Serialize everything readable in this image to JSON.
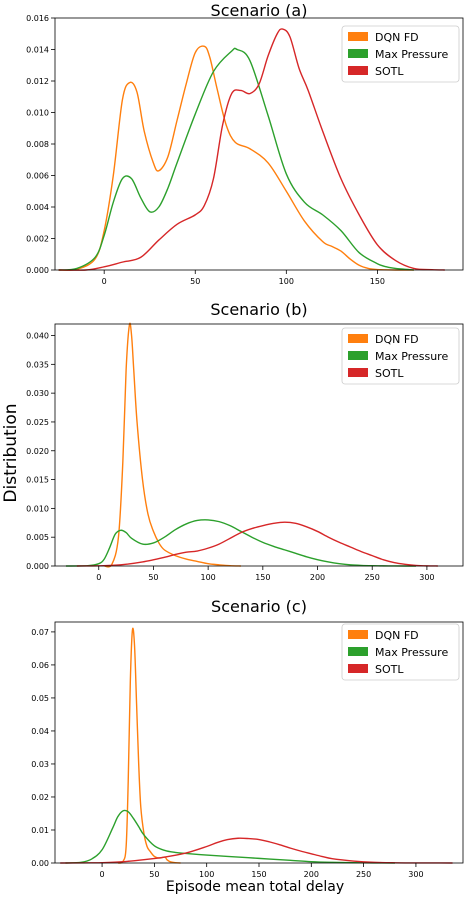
{
  "figure": {
    "shared_ylabel": "Distribution",
    "shared_xlabel": "Episode mean total delay"
  },
  "colors": {
    "DQN FD": "#ff7f0e",
    "Max Pressure": "#2ca02c",
    "SOTL": "#d62728"
  },
  "chart_data": [
    {
      "type": "area",
      "title": "Scenario (a)",
      "xlim": [
        -27,
        197
      ],
      "ylim": [
        0,
        0.016
      ],
      "xticks": [
        0,
        50,
        100,
        150
      ],
      "yticks": [
        0.0,
        0.002,
        0.004,
        0.006,
        0.008,
        0.01,
        0.012,
        0.014,
        0.016
      ],
      "ytick_decimals": 3,
      "legend": {
        "placement": "top-right",
        "entries": [
          "DQN FD",
          "Max Pressure",
          "SOTL"
        ]
      },
      "series": [
        {
          "name": "DQN FD",
          "x": [
            -25,
            -15,
            -5,
            0,
            5,
            10,
            14,
            18,
            22,
            27,
            30,
            35,
            40,
            45,
            50,
            55,
            58,
            62,
            67,
            72,
            80,
            90,
            100,
            110,
            120,
            125,
            130,
            135,
            140,
            145,
            150,
            160,
            170
          ],
          "y": [
            0,
            5e-05,
            0.0007,
            0.0025,
            0.006,
            0.0108,
            0.0119,
            0.0113,
            0.0088,
            0.0068,
            0.0063,
            0.0072,
            0.0095,
            0.0118,
            0.0138,
            0.0142,
            0.0135,
            0.0115,
            0.0092,
            0.0081,
            0.0077,
            0.0068,
            0.005,
            0.0031,
            0.0018,
            0.0015,
            0.0012,
            0.0007,
            0.0003,
            0.0001,
            3e-05,
            0,
            0
          ]
        },
        {
          "name": "Max Pressure",
          "x": [
            -25,
            -15,
            -5,
            0,
            5,
            10,
            15,
            20,
            25,
            30,
            35,
            40,
            50,
            60,
            70,
            73,
            80,
            90,
            100,
            110,
            120,
            130,
            140,
            150,
            155,
            160,
            170
          ],
          "y": [
            0,
            0.0001,
            0.0008,
            0.0022,
            0.0043,
            0.0058,
            0.0058,
            0.0046,
            0.0037,
            0.004,
            0.0052,
            0.0068,
            0.0099,
            0.0126,
            0.0139,
            0.014,
            0.0133,
            0.0098,
            0.0061,
            0.0043,
            0.0035,
            0.0025,
            0.0011,
            0.0004,
            0.0002,
            0.0001,
            0
          ]
        },
        {
          "name": "SOTL",
          "x": [
            -25,
            -10,
            0,
            10,
            20,
            30,
            40,
            50,
            55,
            60,
            65,
            70,
            75,
            80,
            85,
            90,
            95,
            98,
            102,
            107,
            112,
            120,
            130,
            140,
            150,
            160,
            170,
            180,
            187
          ],
          "y": [
            0,
            0,
            0.0002,
            0.0005,
            0.0008,
            0.0019,
            0.0029,
            0.0035,
            0.0041,
            0.0058,
            0.0092,
            0.0112,
            0.0114,
            0.0112,
            0.0118,
            0.0136,
            0.015,
            0.0153,
            0.0148,
            0.0128,
            0.0114,
            0.0088,
            0.0058,
            0.0035,
            0.0016,
            0.0006,
            0.0001,
            2e-05,
            0
          ]
        }
      ]
    },
    {
      "type": "area",
      "title": "Scenario (b)",
      "xlim": [
        -40,
        333
      ],
      "ylim": [
        0,
        0.042
      ],
      "xticks": [
        0,
        50,
        100,
        150,
        200,
        250,
        300
      ],
      "yticks": [
        0.0,
        0.005,
        0.01,
        0.015,
        0.02,
        0.025,
        0.03,
        0.035,
        0.04
      ],
      "ytick_decimals": 3,
      "legend": {
        "placement": "top-right",
        "entries": [
          "DQN FD",
          "Max Pressure",
          "SOTL"
        ]
      },
      "series": [
        {
          "name": "DQN FD",
          "x": [
            5,
            12,
            18,
            22,
            25,
            28,
            30,
            32,
            35,
            40,
            45,
            50,
            55,
            60,
            70,
            80,
            90,
            100,
            110,
            120,
            130
          ],
          "y": [
            0,
            0.0003,
            0.005,
            0.018,
            0.034,
            0.0418,
            0.04,
            0.034,
            0.025,
            0.015,
            0.009,
            0.006,
            0.004,
            0.0028,
            0.0018,
            0.0012,
            0.0008,
            0.0004,
            0.0002,
            5e-05,
            0
          ]
        },
        {
          "name": "Max Pressure",
          "x": [
            -30,
            -10,
            0,
            5,
            10,
            15,
            20,
            25,
            30,
            40,
            50,
            60,
            70,
            80,
            90,
            100,
            110,
            120,
            130,
            140,
            150,
            160,
            170,
            180,
            190,
            200,
            210,
            220,
            230,
            240,
            250,
            260,
            270,
            280,
            290
          ],
          "y": [
            0,
            5e-05,
            0.0004,
            0.0012,
            0.0032,
            0.0055,
            0.0062,
            0.0058,
            0.0048,
            0.0038,
            0.004,
            0.005,
            0.0063,
            0.0073,
            0.0079,
            0.008,
            0.0077,
            0.007,
            0.006,
            0.005,
            0.0041,
            0.0034,
            0.0028,
            0.0022,
            0.0016,
            0.0011,
            0.0007,
            0.0004,
            0.0002,
            0.0001,
            5e-05,
            2e-05,
            1e-05,
            0,
            0
          ]
        },
        {
          "name": "SOTL",
          "x": [
            -20,
            0,
            20,
            40,
            60,
            70,
            80,
            90,
            100,
            110,
            120,
            130,
            140,
            150,
            160,
            170,
            180,
            190,
            200,
            210,
            220,
            230,
            240,
            250,
            260,
            270,
            280,
            290,
            300,
            310
          ],
          "y": [
            0,
            3e-05,
            0.0002,
            0.0007,
            0.0015,
            0.002,
            0.0024,
            0.0026,
            0.0031,
            0.0038,
            0.0048,
            0.0058,
            0.0065,
            0.007,
            0.0074,
            0.0076,
            0.0074,
            0.0068,
            0.006,
            0.005,
            0.0041,
            0.0033,
            0.0025,
            0.0018,
            0.0011,
            0.0006,
            0.0003,
            0.0001,
            2e-05,
            0
          ]
        }
      ]
    },
    {
      "type": "area",
      "title": "Scenario (c)",
      "xlim": [
        -45,
        345
      ],
      "ylim": [
        0,
        0.073
      ],
      "xticks": [
        0,
        50,
        100,
        150,
        200,
        250,
        300
      ],
      "yticks": [
        0.0,
        0.01,
        0.02,
        0.03,
        0.04,
        0.05,
        0.06,
        0.07
      ],
      "ytick_decimals": 2,
      "legend": {
        "placement": "top-right",
        "entries": [
          "DQN FD",
          "Max Pressure",
          "SOTL"
        ]
      },
      "series": [
        {
          "name": "DQN FD",
          "x": [
            15,
            20,
            23,
            25,
            27,
            29,
            31,
            33,
            35,
            37,
            40,
            43,
            46,
            50,
            55,
            60,
            62,
            65,
            70,
            75
          ],
          "y": [
            0,
            0.0005,
            0.005,
            0.025,
            0.055,
            0.0705,
            0.066,
            0.048,
            0.03,
            0.017,
            0.009,
            0.005,
            0.0035,
            0.002,
            0.0015,
            0.0018,
            0.001,
            0.0004,
            0.0001,
            0
          ]
        },
        {
          "name": "Max Pressure",
          "x": [
            -35,
            -20,
            -10,
            0,
            10,
            15,
            20,
            25,
            30,
            35,
            40,
            50,
            60,
            70,
            80,
            100,
            120,
            140,
            160,
            180,
            200,
            220,
            240,
            260,
            280
          ],
          "y": [
            0,
            0.0002,
            0.0012,
            0.004,
            0.0105,
            0.014,
            0.0158,
            0.0155,
            0.0135,
            0.011,
            0.0085,
            0.0052,
            0.0038,
            0.0032,
            0.0029,
            0.0024,
            0.002,
            0.0016,
            0.0012,
            0.0008,
            0.0004,
            0.0002,
            0.0001,
            3e-05,
            0
          ]
        },
        {
          "name": "SOTL",
          "x": [
            -40,
            -10,
            0,
            20,
            40,
            60,
            80,
            100,
            110,
            120,
            130,
            140,
            150,
            160,
            170,
            180,
            190,
            200,
            210,
            220,
            240,
            260,
            280,
            300,
            320,
            335
          ],
          "y": [
            0,
            5e-05,
            0.0001,
            0.0004,
            0.001,
            0.0018,
            0.003,
            0.005,
            0.0062,
            0.0071,
            0.0075,
            0.0074,
            0.0071,
            0.0064,
            0.0055,
            0.0045,
            0.0036,
            0.0028,
            0.002,
            0.0013,
            0.0006,
            0.0002,
            6e-05,
            2e-05,
            1e-05,
            0
          ]
        }
      ]
    }
  ]
}
